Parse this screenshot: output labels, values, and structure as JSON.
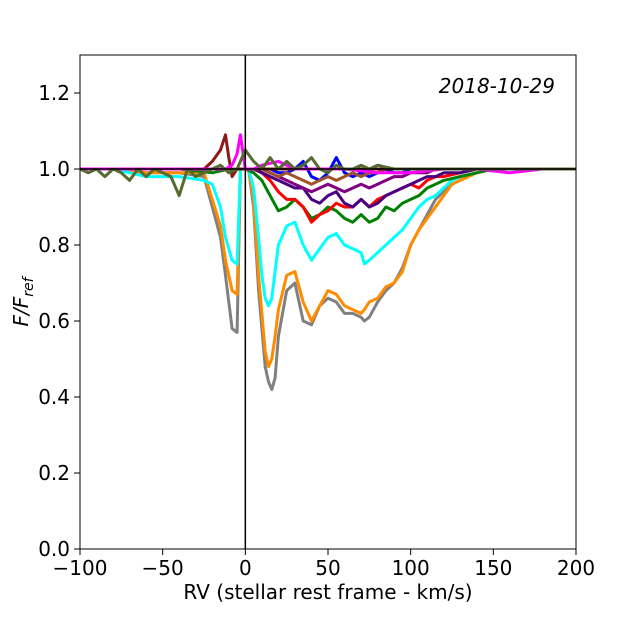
{
  "chart_data": {
    "type": "line",
    "title": "",
    "annotation": "2018-10-29",
    "xlabel": "RV (stellar rest frame - km/s)",
    "ylabel_main": "F/F",
    "ylabel_sub": "ref",
    "xlim": [
      -100,
      200
    ],
    "ylim": [
      0.0,
      1.3
    ],
    "xticks": [
      -100,
      -50,
      0,
      50,
      100,
      150,
      200
    ],
    "xtick_labels": [
      "−100",
      "−50",
      "0",
      "50",
      "100",
      "150",
      "200"
    ],
    "yticks": [
      0.0,
      0.2,
      0.4,
      0.6,
      0.8,
      1.0,
      1.2
    ],
    "ytick_labels": [
      "0.0",
      "0.2",
      "0.4",
      "0.6",
      "0.8",
      "1.0",
      "1.2"
    ],
    "grid": false,
    "reference_lines": {
      "horizontal_y": 1.0,
      "vertical_x": 0
    },
    "series": [
      {
        "color": "#808080",
        "x": [
          -100,
          -80,
          -60,
          -40,
          -25,
          -20,
          -15,
          -12,
          -8,
          -5,
          -3,
          2,
          5,
          8,
          10,
          12,
          14,
          16,
          18,
          20,
          25,
          30,
          35,
          40,
          45,
          50,
          55,
          60,
          65,
          70,
          72,
          75,
          80,
          85,
          90,
          95,
          100,
          105,
          110,
          115,
          120,
          125,
          130,
          140,
          150,
          160,
          170,
          180,
          190,
          200
        ],
        "y": [
          1.0,
          1.0,
          0.99,
          0.99,
          0.98,
          0.9,
          0.82,
          0.72,
          0.58,
          0.57,
          1.0,
          1.0,
          0.9,
          0.68,
          0.58,
          0.48,
          0.44,
          0.42,
          0.45,
          0.56,
          0.68,
          0.7,
          0.6,
          0.59,
          0.64,
          0.66,
          0.65,
          0.62,
          0.62,
          0.61,
          0.6,
          0.61,
          0.65,
          0.68,
          0.7,
          0.74,
          0.8,
          0.84,
          0.88,
          0.92,
          0.94,
          0.97,
          0.98,
          0.99,
          1.0,
          1.0,
          1.0,
          1.0,
          1.0,
          1.0
        ]
      },
      {
        "color": "#ff8c00",
        "x": [
          -100,
          -80,
          -60,
          -40,
          -25,
          -20,
          -15,
          -12,
          -8,
          -5,
          -3,
          2,
          5,
          8,
          10,
          12,
          14,
          16,
          18,
          20,
          25,
          30,
          35,
          40,
          45,
          50,
          55,
          60,
          65,
          70,
          72,
          75,
          80,
          85,
          90,
          95,
          100,
          105,
          110,
          115,
          120,
          125,
          130,
          140,
          150,
          160,
          170,
          180,
          190,
          200
        ],
        "y": [
          1.0,
          1.0,
          0.99,
          0.99,
          0.99,
          0.92,
          0.85,
          0.76,
          0.68,
          0.67,
          1.0,
          1.0,
          0.92,
          0.72,
          0.62,
          0.52,
          0.48,
          0.5,
          0.56,
          0.63,
          0.72,
          0.73,
          0.65,
          0.6,
          0.64,
          0.68,
          0.67,
          0.64,
          0.63,
          0.62,
          0.63,
          0.65,
          0.66,
          0.69,
          0.7,
          0.73,
          0.8,
          0.84,
          0.87,
          0.9,
          0.93,
          0.96,
          0.97,
          0.99,
          1.0,
          1.0,
          1.0,
          1.0,
          1.0,
          1.0
        ]
      },
      {
        "color": "#00ffff",
        "x": [
          -100,
          -80,
          -60,
          -40,
          -25,
          -20,
          -15,
          -12,
          -8,
          -5,
          -3,
          2,
          5,
          8,
          10,
          12,
          14,
          16,
          18,
          20,
          25,
          30,
          35,
          40,
          45,
          50,
          55,
          60,
          65,
          70,
          72,
          75,
          80,
          85,
          90,
          95,
          100,
          105,
          110,
          115,
          120,
          125,
          130,
          140,
          150,
          160,
          170,
          180,
          190,
          200
        ],
        "y": [
          1.0,
          1.0,
          0.98,
          0.98,
          0.97,
          0.96,
          0.9,
          0.82,
          0.76,
          0.75,
          1.0,
          1.0,
          0.95,
          0.82,
          0.72,
          0.66,
          0.64,
          0.66,
          0.73,
          0.8,
          0.85,
          0.86,
          0.8,
          0.76,
          0.79,
          0.82,
          0.83,
          0.8,
          0.79,
          0.78,
          0.75,
          0.76,
          0.78,
          0.8,
          0.82,
          0.84,
          0.87,
          0.9,
          0.92,
          0.93,
          0.95,
          0.97,
          0.98,
          0.99,
          1.0,
          1.0,
          1.0,
          1.0,
          1.0,
          1.0
        ]
      },
      {
        "color": "#008000",
        "x": [
          -100,
          -80,
          -60,
          -40,
          -20,
          -10,
          -5,
          0,
          5,
          10,
          15,
          20,
          25,
          30,
          35,
          40,
          45,
          50,
          55,
          60,
          65,
          70,
          75,
          80,
          85,
          90,
          95,
          100,
          105,
          110,
          115,
          120,
          130,
          140,
          150,
          160,
          170,
          180,
          190,
          200
        ],
        "y": [
          1.0,
          1.0,
          1.0,
          1.0,
          0.99,
          1.0,
          1.0,
          1.0,
          0.99,
          0.97,
          0.93,
          0.89,
          0.9,
          0.92,
          0.9,
          0.87,
          0.88,
          0.9,
          0.89,
          0.87,
          0.86,
          0.88,
          0.86,
          0.87,
          0.9,
          0.89,
          0.91,
          0.92,
          0.93,
          0.95,
          0.96,
          0.97,
          0.98,
          0.99,
          1.0,
          1.0,
          1.0,
          1.0,
          1.0,
          1.0
        ]
      },
      {
        "color": "#ff0000",
        "x": [
          -100,
          -80,
          -60,
          -40,
          -20,
          -10,
          -5,
          0,
          5,
          10,
          15,
          20,
          25,
          30,
          35,
          40,
          45,
          50,
          55,
          60,
          65,
          70,
          75,
          80,
          85,
          90,
          95,
          100,
          105,
          110,
          115,
          120,
          130,
          140,
          150,
          160,
          170,
          180,
          190,
          200
        ],
        "y": [
          1.0,
          1.0,
          1.0,
          1.0,
          1.0,
          1.0,
          1.0,
          1.0,
          1.0,
          0.99,
          0.97,
          0.94,
          0.92,
          0.92,
          0.9,
          0.86,
          0.88,
          0.89,
          0.91,
          0.9,
          0.9,
          0.92,
          0.9,
          0.92,
          0.93,
          0.94,
          0.95,
          0.96,
          0.95,
          0.97,
          0.98,
          0.98,
          0.99,
          1.0,
          1.0,
          1.0,
          1.0,
          1.0,
          1.0,
          1.0
        ]
      },
      {
        "color": "#4b0082",
        "x": [
          -100,
          -80,
          -60,
          -40,
          -20,
          -10,
          -5,
          0,
          5,
          10,
          15,
          20,
          25,
          30,
          35,
          40,
          45,
          50,
          55,
          60,
          65,
          70,
          75,
          80,
          85,
          90,
          95,
          100,
          105,
          110,
          115,
          120,
          130,
          140,
          150,
          160,
          170,
          180,
          190,
          200
        ],
        "y": [
          1.0,
          1.0,
          1.0,
          1.0,
          1.0,
          1.0,
          1.0,
          1.0,
          1.0,
          0.99,
          0.98,
          0.97,
          0.96,
          0.95,
          0.95,
          0.92,
          0.91,
          0.93,
          0.94,
          0.91,
          0.9,
          0.92,
          0.9,
          0.91,
          0.93,
          0.94,
          0.95,
          0.96,
          0.97,
          0.98,
          0.98,
          0.99,
          0.99,
          1.0,
          1.0,
          1.0,
          1.0,
          1.0,
          1.0,
          1.0
        ]
      },
      {
        "color": "#800080",
        "x": [
          -100,
          -80,
          -60,
          -40,
          -20,
          -10,
          -5,
          0,
          5,
          10,
          15,
          20,
          25,
          30,
          35,
          40,
          45,
          50,
          55,
          60,
          65,
          70,
          75,
          80,
          85,
          90,
          95,
          100,
          105,
          110,
          115,
          120,
          130,
          140,
          150,
          160,
          170,
          180,
          190,
          200
        ],
        "y": [
          1.0,
          1.0,
          1.0,
          1.0,
          1.0,
          1.0,
          1.0,
          1.0,
          1.0,
          1.0,
          0.99,
          0.98,
          0.97,
          0.96,
          0.95,
          0.94,
          0.95,
          0.96,
          0.95,
          0.94,
          0.95,
          0.96,
          0.95,
          0.96,
          0.97,
          0.98,
          0.98,
          0.99,
          0.99,
          0.99,
          1.0,
          1.0,
          1.0,
          1.0,
          1.0,
          1.0,
          1.0,
          1.0,
          1.0,
          1.0
        ]
      },
      {
        "color": "#0000ff",
        "x": [
          -100,
          -80,
          -60,
          -40,
          -20,
          -10,
          -5,
          0,
          5,
          10,
          15,
          20,
          25,
          30,
          35,
          40,
          45,
          50,
          55,
          60,
          65,
          70,
          75,
          80,
          85,
          90,
          95,
          100,
          105,
          110,
          115,
          120,
          130,
          140,
          150,
          160,
          170,
          180,
          190,
          200
        ],
        "y": [
          1.0,
          1.0,
          1.0,
          1.0,
          1.0,
          1.0,
          1.0,
          1.0,
          1.0,
          1.0,
          1.0,
          0.99,
          0.99,
          1.0,
          1.02,
          0.98,
          0.97,
          0.99,
          1.03,
          0.99,
          0.98,
          0.99,
          0.98,
          0.99,
          1.0,
          0.99,
          0.99,
          1.0,
          1.0,
          1.0,
          1.0,
          1.0,
          1.0,
          1.0,
          1.0,
          1.0,
          1.0,
          1.0,
          1.0,
          1.0
        ]
      },
      {
        "color": "#a0522d",
        "x": [
          -100,
          -80,
          -60,
          -40,
          -20,
          -10,
          -5,
          0,
          5,
          10,
          15,
          20,
          25,
          30,
          35,
          40,
          45,
          50,
          55,
          60,
          65,
          70,
          75,
          80,
          85,
          90,
          95,
          100,
          105,
          110,
          115,
          120,
          130,
          140,
          150,
          160,
          170,
          180,
          190,
          200
        ],
        "y": [
          1.0,
          1.0,
          1.0,
          1.0,
          1.0,
          1.0,
          1.0,
          1.0,
          1.0,
          1.0,
          0.99,
          0.98,
          0.99,
          0.98,
          0.97,
          0.96,
          0.97,
          0.98,
          0.97,
          0.98,
          0.99,
          0.98,
          0.99,
          0.99,
          1.0,
          1.0,
          1.0,
          1.0,
          1.0,
          1.0,
          1.0,
          1.0,
          1.0,
          1.0,
          1.0,
          1.0,
          1.0,
          1.0,
          1.0,
          1.0
        ]
      },
      {
        "color": "#8b1a1a",
        "x": [
          -100,
          -80,
          -60,
          -40,
          -25,
          -20,
          -15,
          -12,
          -10,
          -8,
          -5,
          -3,
          0,
          5,
          10,
          20,
          40,
          60,
          80,
          100,
          120,
          140,
          160,
          180,
          200
        ],
        "y": [
          1.0,
          1.0,
          1.0,
          1.0,
          1.0,
          1.02,
          1.05,
          1.09,
          1.03,
          0.98,
          1.0,
          1.0,
          1.0,
          1.0,
          1.0,
          1.0,
          1.0,
          1.0,
          1.0,
          1.0,
          1.0,
          1.0,
          1.0,
          1.0,
          1.0
        ]
      },
      {
        "color": "#ff00ff",
        "x": [
          -100,
          -80,
          -60,
          -40,
          -20,
          -12,
          -8,
          -5,
          -3,
          0,
          5,
          10,
          20,
          30,
          40,
          60,
          80,
          100,
          120,
          140,
          160,
          180,
          200
        ],
        "y": [
          1.0,
          1.0,
          1.0,
          1.0,
          1.0,
          1.0,
          1.01,
          1.04,
          1.09,
          1.0,
          1.0,
          1.01,
          1.02,
          1.0,
          1.0,
          1.0,
          0.99,
          0.99,
          1.0,
          1.0,
          0.99,
          1.0,
          1.0
        ]
      },
      {
        "color": "#556b2f",
        "x": [
          -100,
          -95,
          -90,
          -85,
          -80,
          -75,
          -70,
          -65,
          -60,
          -55,
          -50,
          -45,
          -40,
          -35,
          -30,
          -25,
          -20,
          -15,
          -10,
          -5,
          0,
          5,
          10,
          15,
          20,
          25,
          30,
          35,
          40,
          45,
          50,
          55,
          60,
          65,
          70,
          75,
          80,
          90,
          100,
          110,
          120,
          130,
          140,
          150,
          160,
          170,
          180,
          190,
          200
        ],
        "y": [
          1.0,
          0.99,
          1.0,
          0.98,
          1.0,
          0.99,
          0.97,
          1.0,
          0.98,
          1.0,
          0.99,
          0.98,
          0.93,
          1.0,
          0.98,
          0.99,
          1.0,
          1.01,
          0.99,
          1.0,
          1.05,
          1.02,
          1.0,
          1.03,
          1.0,
          1.02,
          1.0,
          1.01,
          1.03,
          1.0,
          0.99,
          1.01,
          1.0,
          1.0,
          1.01,
          1.0,
          1.01,
          1.0,
          1.0,
          1.0,
          1.0,
          1.0,
          1.0,
          1.0,
          1.0,
          1.0,
          1.0,
          1.0,
          1.0
        ]
      }
    ]
  }
}
